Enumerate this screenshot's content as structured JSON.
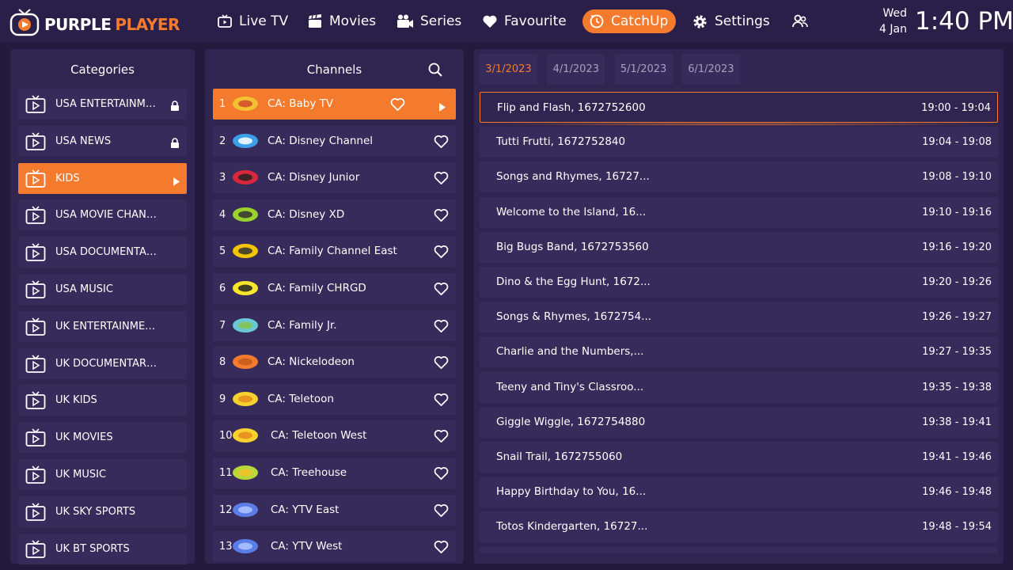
{
  "brand": {
    "part1": "PURPLE",
    "part2": "PLAYER"
  },
  "nav": [
    {
      "id": "live-tv",
      "label": "Live TV",
      "icon": "tv-icon"
    },
    {
      "id": "movies",
      "label": "Movies",
      "icon": "clapperboard-icon"
    },
    {
      "id": "series",
      "label": "Series",
      "icon": "series-icon"
    },
    {
      "id": "favourite",
      "label": "Favourite",
      "icon": "heart-icon"
    },
    {
      "id": "catchup",
      "label": "CatchUp",
      "icon": "catchup-icon",
      "active": true
    },
    {
      "id": "settings",
      "label": "Settings",
      "icon": "gear-icon"
    }
  ],
  "datetime": {
    "day": "Wed",
    "date": "4 Jan",
    "time": "1:40 PM"
  },
  "categories": {
    "title": "Categories",
    "items": [
      {
        "label": "USA ENTERTAINME...",
        "locked": true
      },
      {
        "label": "USA NEWS",
        "locked": true
      },
      {
        "label": "KIDS",
        "active": true
      },
      {
        "label": "USA MOVIE CHANN..."
      },
      {
        "label": "USA DOCUMENTARI..."
      },
      {
        "label": "USA MUSIC"
      },
      {
        "label": "UK ENTERTAINMENT"
      },
      {
        "label": "UK DOCUMENTARIES"
      },
      {
        "label": "UK KIDS"
      },
      {
        "label": "UK MOVIES"
      },
      {
        "label": "UK MUSIC"
      },
      {
        "label": "UK SKY SPORTS"
      },
      {
        "label": "UK BT SPORTS"
      }
    ]
  },
  "channels": {
    "title": "Channels",
    "items": [
      {
        "num": "1",
        "name": "CA: Baby TV",
        "active": true,
        "logo": "babytv-logo"
      },
      {
        "num": "2",
        "name": "CA: Disney Channel",
        "logo": "disney-channel-logo"
      },
      {
        "num": "3",
        "name": "CA: Disney Junior",
        "logo": "disney-junior-logo"
      },
      {
        "num": "4",
        "name": "CA: Disney XD",
        "logo": "disney-xd-logo"
      },
      {
        "num": "5",
        "name": "CA: Family Channel East",
        "logo": "family-channel-logo"
      },
      {
        "num": "6",
        "name": "CA: Family CHRGD",
        "logo": "chrgd-logo"
      },
      {
        "num": "7",
        "name": "CA: Family Jr.",
        "logo": "family-jr-logo"
      },
      {
        "num": "8",
        "name": "CA: Nickelodeon",
        "logo": "nickelodeon-logo"
      },
      {
        "num": "9",
        "name": "CA: Teletoon",
        "logo": "teletoon-logo"
      },
      {
        "num": "10",
        "name": "CA: Teletoon West",
        "logo": "teletoon-west-logo"
      },
      {
        "num": "11",
        "name": "CA: Treehouse",
        "logo": "treehouse-logo"
      },
      {
        "num": "12",
        "name": "CA: YTV East",
        "logo": "ytv-logo"
      },
      {
        "num": "13",
        "name": "CA: YTV West",
        "logo": "ytv-logo"
      }
    ]
  },
  "dates": [
    {
      "label": "3/1/2023",
      "active": true
    },
    {
      "label": "4/1/2023"
    },
    {
      "label": "5/1/2023"
    },
    {
      "label": "6/1/2023"
    }
  ],
  "programs": [
    {
      "title": "Flip and Flash, 1672752600",
      "time": "19:00 - 19:04",
      "active": true
    },
    {
      "title": "Tutti Frutti, 1672752840",
      "time": "19:04 - 19:08"
    },
    {
      "title": "Songs and Rhymes, 16727...",
      "time": "19:08 - 19:10"
    },
    {
      "title": "Welcome to the Island, 16...",
      "time": "19:10 - 19:16"
    },
    {
      "title": "Big Bugs Band, 1672753560",
      "time": "19:16 - 19:20"
    },
    {
      "title": "Dino & the Egg Hunt, 1672...",
      "time": "19:20 - 19:26"
    },
    {
      "title": "Songs & Rhymes, 1672754...",
      "time": "19:26 - 19:27"
    },
    {
      "title": "Charlie and the Numbers,...",
      "time": "19:27 - 19:35"
    },
    {
      "title": "Teeny and Tiny's Classroo...",
      "time": "19:35 - 19:38"
    },
    {
      "title": "Giggle Wiggle, 1672754880",
      "time": "19:38 - 19:41"
    },
    {
      "title": "Snail Trail, 1672755060",
      "time": "19:41 - 19:46"
    },
    {
      "title": "Happy Birthday to You, 16...",
      "time": "19:46 - 19:48"
    },
    {
      "title": "Totos Kindergarten, 16727...",
      "time": "19:48 - 19:54"
    }
  ],
  "colors": {
    "accent": "#f47a2e",
    "background": "#241a3d",
    "panel": "#2f2550",
    "row": "#362b5a"
  }
}
